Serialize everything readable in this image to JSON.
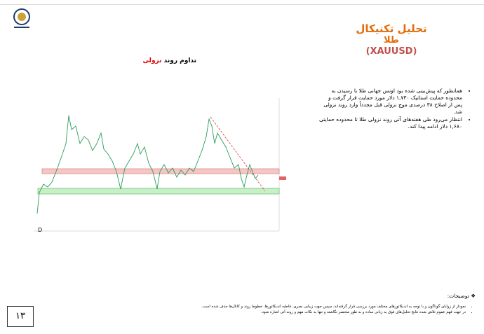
{
  "header": {
    "title": "تحلیل تکنیکال",
    "subtitle": "طلا",
    "symbol": "(XAUUSD)"
  },
  "chart": {
    "caption": "تداوم روند",
    "caption_highlight": "نزولی",
    "timeframe": "D"
  },
  "bullets": [
    "همانطور که پیش‌بینی شده بود اونس جهانی طلا با رسیدن به محدوده حمایت استاتیک ۱,۷۳۰ دلار مورد حمایت قرار گرفت و پس از اصلاح ۳۸ درصدی موج نزولی قبل مجدداً وارد روند نزولی شد.",
    "انتظار می‌رود طی هفته‌های آتی روند نزولی طلا تا محدوده حمایتی ۱,۶۸۰ دلار ادامه پیدا کند."
  ],
  "notes": {
    "title": "توضیحات:",
    "items": [
      "نمودار از زوایای گوناگون و با توجه به اندیکاتورهای مختلف مورد بررسی قرار گرفته‌اند، سپس جهت زیبایی بصری، قاطبه اندیکاتورها، خطوط روند و کانال‌ها حذف شده است.",
      "در جهت فهم عموم تلاش شده نتایج تحلیل‌های فوق به زبانی ساده و به طور مختصر نگاشته و تنها به نکات مهم و روند آتی اشاره شود."
    ]
  },
  "page_number": "۱۳"
}
